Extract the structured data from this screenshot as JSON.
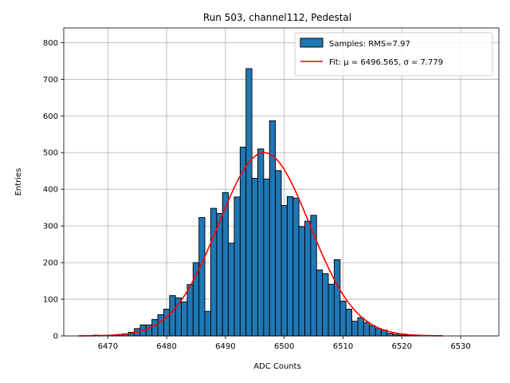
{
  "chart_data": {
    "type": "bar",
    "title": "Run 503, channel112, Pedestal",
    "xlabel": "ADC Counts",
    "ylabel": "Entries",
    "xlim": [
      6462.5,
      6536.5
    ],
    "ylim": [
      0,
      840
    ],
    "xticks": [
      6470,
      6480,
      6490,
      6500,
      6510,
      6520,
      6530
    ],
    "yticks": [
      0,
      100,
      200,
      300,
      400,
      500,
      600,
      700,
      800
    ],
    "grid": true,
    "legend_position": "upper right",
    "bin_width": 1,
    "series": [
      {
        "name": "Samples: RMS=7.97",
        "kind": "histogram",
        "color": "#1f77b4",
        "edgecolor": "#000000",
        "x": [
          6468,
          6471,
          6472,
          6473,
          6474,
          6475,
          6476,
          6477,
          6478,
          6479,
          6480,
          6481,
          6482,
          6483,
          6484,
          6485,
          6486,
          6487,
          6488,
          6489,
          6490,
          6491,
          6492,
          6493,
          6494,
          6495,
          6496,
          6497,
          6498,
          6499,
          6500,
          6501,
          6502,
          6503,
          6504,
          6505,
          6506,
          6507,
          6508,
          6509,
          6510,
          6511,
          6512,
          6513,
          6514,
          6515,
          6516,
          6517,
          6518,
          6519,
          6520,
          6521,
          6522
        ],
        "values": [
          2,
          2,
          4,
          6,
          10,
          20,
          30,
          30,
          45,
          58,
          73,
          110,
          104,
          93,
          140,
          200,
          323,
          67,
          348,
          334,
          391,
          253,
          379,
          515,
          729,
          430,
          510,
          428,
          587,
          451,
          356,
          380,
          376,
          298,
          313,
          329,
          180,
          170,
          141,
          208,
          95,
          73,
          40,
          50,
          37,
          28,
          20,
          16,
          7,
          4,
          2,
          2,
          2
        ]
      },
      {
        "name": "Fit: μ = 6496.565, σ = 7.779",
        "kind": "gaussian-fit",
        "color": "#ff0000",
        "mu": 6496.565,
        "sigma": 7.779,
        "amplitude": 500,
        "x_range": [
          6465,
          6527
        ]
      }
    ]
  }
}
